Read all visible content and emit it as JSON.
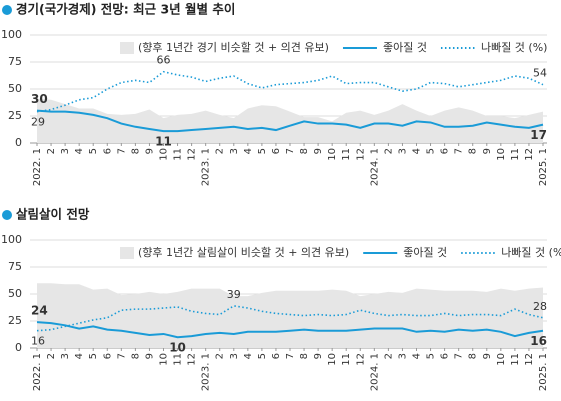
{
  "chart_data": [
    {
      "type": "line",
      "title": "경기(국가경제) 전망: 최근 3년 월별 추이",
      "categories": [
        "2022. 1",
        "2",
        "3",
        "4",
        "5",
        "6",
        "7",
        "8",
        "9",
        "10",
        "11",
        "12",
        "2023. 1",
        "2",
        "3",
        "4",
        "5",
        "6",
        "7",
        "8",
        "9",
        "10",
        "11",
        "12",
        "2024. 1",
        "2",
        "3",
        "4",
        "5",
        "6",
        "7",
        "8",
        "9",
        "10",
        "11",
        "12",
        "2025. 1"
      ],
      "ylim": [
        0,
        100
      ],
      "yticks": [
        0,
        25,
        50,
        75,
        100
      ],
      "grid": true,
      "series": [
        {
          "name": "(향후 1년간 경기 비슷할 것 + 의견 유보)",
          "kind": "area",
          "color": "#e6e6e6",
          "values": [
            41,
            40,
            36,
            32,
            32,
            27,
            26,
            27,
            31,
            23,
            26,
            27,
            30,
            26,
            23,
            32,
            35,
            34,
            29,
            24,
            24,
            20,
            28,
            30,
            26,
            30,
            36,
            30,
            25,
            30,
            33,
            30,
            25,
            25,
            23,
            26,
            29
          ]
        },
        {
          "name": "좋아질 것",
          "kind": "solid",
          "color": "#1a9bd7",
          "labeled_indices": [
            0,
            9,
            36
          ],
          "values": [
            30,
            29,
            29,
            28,
            26,
            23,
            18,
            15,
            13,
            11,
            11,
            12,
            13,
            14,
            15,
            13,
            14,
            12,
            16,
            20,
            18,
            18,
            17,
            14,
            18,
            18,
            16,
            20,
            19,
            15,
            15,
            16,
            19,
            17,
            15,
            14,
            17
          ]
        },
        {
          "name": "나빠질 것 (%)",
          "kind": "dotted",
          "color": "#1a9bd7",
          "labeled_indices": [
            0,
            9,
            36
          ],
          "values": [
            29,
            31,
            35,
            40,
            42,
            50,
            56,
            58,
            56,
            66,
            63,
            61,
            57,
            60,
            62,
            55,
            51,
            54,
            55,
            56,
            58,
            62,
            55,
            56,
            56,
            52,
            48,
            50,
            56,
            55,
            52,
            54,
            56,
            58,
            62,
            60,
            54
          ]
        }
      ]
    },
    {
      "type": "line",
      "title": "살림살이 전망",
      "categories": [
        "2022. 1",
        "2",
        "3",
        "4",
        "5",
        "6",
        "7",
        "8",
        "9",
        "10",
        "11",
        "12",
        "2023. 1",
        "2",
        "3",
        "4",
        "5",
        "6",
        "7",
        "8",
        "9",
        "10",
        "11",
        "12",
        "2024. 1",
        "2",
        "3",
        "4",
        "5",
        "6",
        "7",
        "8",
        "9",
        "10",
        "11",
        "12",
        "2025. 1"
      ],
      "ylim": [
        0,
        100
      ],
      "yticks": [
        0,
        25,
        50,
        75,
        100
      ],
      "grid": true,
      "series": [
        {
          "name": "(향후 1년간 살림살이 비슷할 것 + 의견 유보)",
          "kind": "area",
          "color": "#e6e6e6",
          "values": [
            60,
            60,
            59,
            59,
            54,
            55,
            49,
            50,
            52,
            50,
            52,
            55,
            55,
            55,
            48,
            48,
            51,
            53,
            53,
            53,
            53,
            54,
            53,
            48,
            50,
            52,
            51,
            55,
            54,
            53,
            53,
            53,
            52,
            55,
            53,
            55,
            56
          ]
        },
        {
          "name": "좋아질 것",
          "kind": "solid",
          "color": "#1a9bd7",
          "labeled_indices": [
            0,
            10,
            36
          ],
          "values": [
            24,
            23,
            21,
            18,
            20,
            17,
            16,
            14,
            12,
            13,
            10,
            11,
            13,
            14,
            13,
            15,
            15,
            15,
            16,
            17,
            16,
            16,
            16,
            17,
            18,
            18,
            18,
            15,
            16,
            15,
            17,
            16,
            17,
            15,
            11,
            14,
            16
          ]
        },
        {
          "name": "나빠질 것 (%)",
          "kind": "dotted",
          "color": "#1a9bd7",
          "labeled_indices": [
            0,
            14,
            36
          ],
          "values": [
            16,
            17,
            20,
            23,
            26,
            28,
            35,
            36,
            36,
            37,
            38,
            34,
            32,
            31,
            39,
            37,
            34,
            32,
            31,
            30,
            31,
            30,
            31,
            35,
            32,
            30,
            31,
            30,
            30,
            32,
            30,
            31,
            31,
            30,
            36,
            31,
            28
          ]
        }
      ]
    }
  ]
}
